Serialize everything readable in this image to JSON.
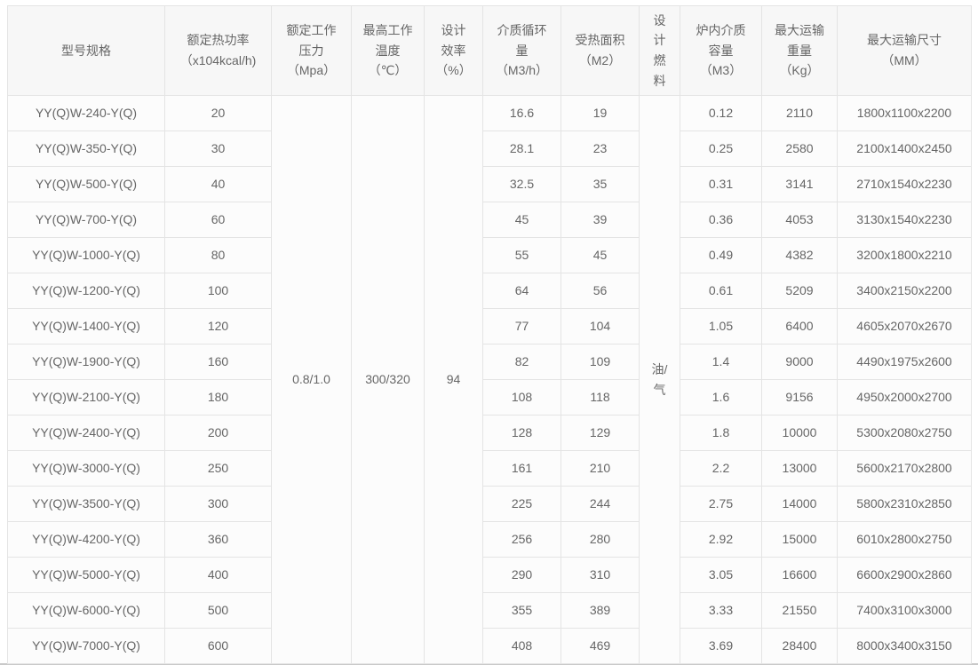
{
  "table": {
    "headers": [
      {
        "id": "model",
        "text": "型号规格"
      },
      {
        "id": "power",
        "text": "额定热功率\n（x104kcal/h)"
      },
      {
        "id": "pressure",
        "text": "额定工作\n压力\n（Mpa）"
      },
      {
        "id": "temperature",
        "text": "最高工作\n温度\n（℃）"
      },
      {
        "id": "efficiency",
        "text": "设计\n效率\n（%）"
      },
      {
        "id": "circulation",
        "text": "介质循环\n量\n（M3/h）"
      },
      {
        "id": "area",
        "text": "受热面积\n（M2）"
      },
      {
        "id": "fuel",
        "text": "设\n计\n燃\n料"
      },
      {
        "id": "capacity",
        "text": "炉内介质\n容量\n（M3）"
      },
      {
        "id": "weight",
        "text": "最大运输\n重量\n（Kg）"
      },
      {
        "id": "size",
        "text": "最大运输尺寸\n（MM）"
      }
    ],
    "merged": {
      "pressure": "0.8/1.0",
      "temperature": "300/320",
      "efficiency": "94",
      "fuel": "油/\n气"
    },
    "rows": [
      {
        "model": "YY(Q)W-240-Y(Q)",
        "power": "20",
        "circulation": "16.6",
        "area": "19",
        "capacity": "0.12",
        "weight": "2110",
        "size": "1800x1100x2200"
      },
      {
        "model": "YY(Q)W-350-Y(Q)",
        "power": "30",
        "circulation": "28.1",
        "area": "23",
        "capacity": "0.25",
        "weight": "2580",
        "size": "2100x1400x2450"
      },
      {
        "model": "YY(Q)W-500-Y(Q)",
        "power": "40",
        "circulation": "32.5",
        "area": "35",
        "capacity": "0.31",
        "weight": "3141",
        "size": "2710x1540x2230"
      },
      {
        "model": "YY(Q)W-700-Y(Q)",
        "power": "60",
        "circulation": "45",
        "area": "39",
        "capacity": "0.36",
        "weight": "4053",
        "size": "3130x1540x2230"
      },
      {
        "model": "YY(Q)W-1000-Y(Q)",
        "power": "80",
        "circulation": "55",
        "area": "45",
        "capacity": "0.49",
        "weight": "4382",
        "size": "3200x1800x2210"
      },
      {
        "model": "YY(Q)W-1200-Y(Q)",
        "power": "100",
        "circulation": "64",
        "area": "56",
        "capacity": "0.61",
        "weight": "5209",
        "size": "3400x2150x2200"
      },
      {
        "model": "YY(Q)W-1400-Y(Q)",
        "power": "120",
        "circulation": "77",
        "area": "104",
        "capacity": "1.05",
        "weight": "6400",
        "size": "4605x2070x2670"
      },
      {
        "model": "YY(Q)W-1900-Y(Q)",
        "power": "160",
        "circulation": "82",
        "area": "109",
        "capacity": "1.4",
        "weight": "9000",
        "size": "4490x1975x2600"
      },
      {
        "model": "YY(Q)W-2100-Y(Q)",
        "power": "180",
        "circulation": "108",
        "area": "118",
        "capacity": "1.6",
        "weight": "9156",
        "size": "4950x2000x2700"
      },
      {
        "model": "YY(Q)W-2400-Y(Q)",
        "power": "200",
        "circulation": "128",
        "area": "129",
        "capacity": "1.8",
        "weight": "10000",
        "size": "5300x2080x2750"
      },
      {
        "model": "YY(Q)W-3000-Y(Q)",
        "power": "250",
        "circulation": "161",
        "area": "210",
        "capacity": "2.2",
        "weight": "13000",
        "size": "5600x2170x2800"
      },
      {
        "model": "YY(Q)W-3500-Y(Q)",
        "power": "300",
        "circulation": "225",
        "area": "244",
        "capacity": "2.75",
        "weight": "14000",
        "size": "5800x2310x2850"
      },
      {
        "model": "YY(Q)W-4200-Y(Q)",
        "power": "360",
        "circulation": "256",
        "area": "280",
        "capacity": "2.92",
        "weight": "15000",
        "size": "6010x2800x2750"
      },
      {
        "model": "YY(Q)W-5000-Y(Q)",
        "power": "400",
        "circulation": "290",
        "area": "310",
        "capacity": "3.05",
        "weight": "16600",
        "size": "6600x2900x2860"
      },
      {
        "model": "YY(Q)W-6000-Y(Q)",
        "power": "500",
        "circulation": "355",
        "area": "389",
        "capacity": "3.33",
        "weight": "21550",
        "size": "7400x3100x3000"
      },
      {
        "model": "YY(Q)W-7000-Y(Q)",
        "power": "600",
        "circulation": "408",
        "area": "469",
        "capacity": "3.69",
        "weight": "28400",
        "size": "8000x3400x3150"
      }
    ],
    "colors": {
      "border": "#e4e4e4",
      "header_bg": "#f7f7f7",
      "cell_bg": "#fcfcfc",
      "text": "#666666",
      "page_bottom_rule": "#c9c9c9"
    }
  }
}
